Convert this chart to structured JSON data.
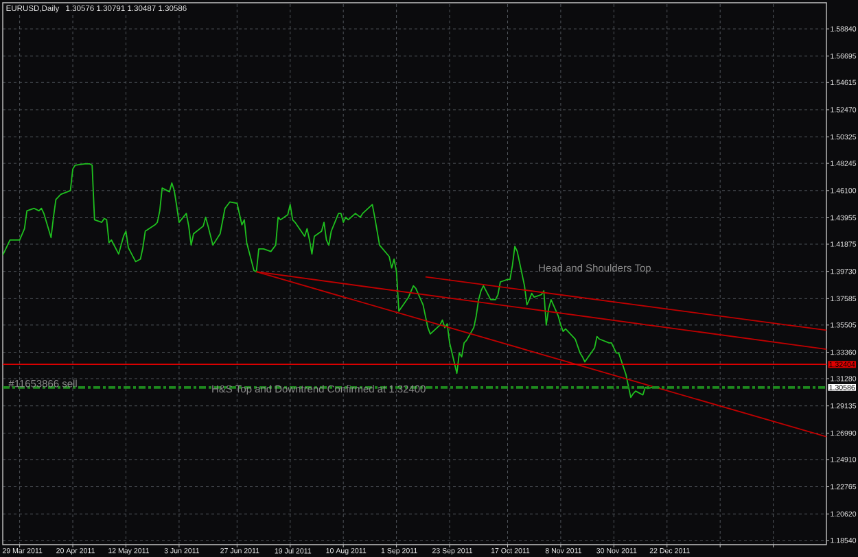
{
  "chart_data": {
    "type": "line",
    "title": "EURUSD,Daily",
    "subtitle": "1.30576 1.30791 1.30487 1.30586",
    "xlim": [
      "2011-03-22",
      "2012-02-26"
    ],
    "ylim": [
      1.182,
      1.609
    ],
    "xticks": [
      {
        "value": "2011-03-29",
        "label": "29 Mar 2011"
      },
      {
        "value": "2011-04-20",
        "label": "20 Apr 2011"
      },
      {
        "value": "2011-05-12",
        "label": "12 May 2011"
      },
      {
        "value": "2011-06-03",
        "label": "3 Jun 2011"
      },
      {
        "value": "2011-06-27",
        "label": "27 Jun 2011"
      },
      {
        "value": "2011-07-19",
        "label": "19 Jul 2011"
      },
      {
        "value": "2011-08-10",
        "label": "10 Aug 2011"
      },
      {
        "value": "2011-09-01",
        "label": "1 Sep 2011"
      },
      {
        "value": "2011-09-23",
        "label": "23 Sep 2011"
      },
      {
        "value": "2011-10-17",
        "label": "17 Oct 2011"
      },
      {
        "value": "2011-11-08",
        "label": "8 Nov 2011"
      },
      {
        "value": "2011-11-30",
        "label": "30 Nov 2011"
      },
      {
        "value": "2011-12-22",
        "label": "22 Dec 2011"
      },
      {
        "value": "2012-01-13",
        "label": null
      },
      {
        "value": "2012-02-04",
        "label": null
      }
    ],
    "yticks": [
      {
        "value": 1.5884,
        "label": "1.58840"
      },
      {
        "value": 1.56695,
        "label": "1.56695"
      },
      {
        "value": 1.54615,
        "label": "1.54615"
      },
      {
        "value": 1.5247,
        "label": "1.52470"
      },
      {
        "value": 1.50325,
        "label": "1.50325"
      },
      {
        "value": 1.48245,
        "label": "1.48245"
      },
      {
        "value": 1.461,
        "label": "1.46100"
      },
      {
        "value": 1.43955,
        "label": "1.43955"
      },
      {
        "value": 1.41875,
        "label": "1.41875"
      },
      {
        "value": 1.3973,
        "label": "1.39730"
      },
      {
        "value": 1.37585,
        "label": "1.37585"
      },
      {
        "value": 1.35505,
        "label": "1.35505"
      },
      {
        "value": 1.3336,
        "label": "1.33360"
      },
      {
        "value": 1.3128,
        "label": "1.31280"
      },
      {
        "value": 1.29135,
        "label": "1.29135"
      },
      {
        "value": 1.2699,
        "label": "1.26990"
      },
      {
        "value": 1.2491,
        "label": "1.24910"
      },
      {
        "value": 1.22765,
        "label": "1.22765"
      },
      {
        "value": 1.2062,
        "label": "1.20620"
      },
      {
        "value": 1.1854,
        "label": "1.18540"
      }
    ],
    "grid": true,
    "series": [
      {
        "color": "#1fc01f",
        "x": [
          "2011-03-22",
          "2011-03-25",
          "2011-03-29",
          "2011-03-31",
          "2011-04-01",
          "2011-04-04",
          "2011-04-06",
          "2011-04-07",
          "2011-04-08",
          "2011-04-11",
          "2011-04-12",
          "2011-04-13",
          "2011-04-15",
          "2011-04-19",
          "2011-04-20",
          "2011-04-21",
          "2011-04-25",
          "2011-04-27",
          "2011-04-28",
          "2011-04-29",
          "2011-05-02",
          "2011-05-03",
          "2011-05-04",
          "2011-05-05",
          "2011-05-06",
          "2011-05-09",
          "2011-05-10",
          "2011-05-11",
          "2011-05-12",
          "2011-05-13",
          "2011-05-16",
          "2011-05-18",
          "2011-05-19",
          "2011-05-20",
          "2011-05-24",
          "2011-05-25",
          "2011-05-26",
          "2011-05-27",
          "2011-05-30",
          "2011-05-31",
          "2011-06-01",
          "2011-06-02",
          "2011-06-03",
          "2011-06-06",
          "2011-06-07",
          "2011-06-08",
          "2011-06-09",
          "2011-06-13",
          "2011-06-14",
          "2011-06-15",
          "2011-06-17",
          "2011-06-20",
          "2011-06-22",
          "2011-06-24",
          "2011-06-27",
          "2011-06-29",
          "2011-06-30",
          "2011-07-01",
          "2011-07-04",
          "2011-07-05",
          "2011-07-06",
          "2011-07-08",
          "2011-07-11",
          "2011-07-13",
          "2011-07-14",
          "2011-07-15",
          "2011-07-18",
          "2011-07-19",
          "2011-07-20",
          "2011-07-21",
          "2011-07-25",
          "2011-07-26",
          "2011-07-27",
          "2011-07-28",
          "2011-07-29",
          "2011-08-01",
          "2011-08-02",
          "2011-08-03",
          "2011-08-04",
          "2011-08-05",
          "2011-08-08",
          "2011-08-09",
          "2011-08-10",
          "2011-08-11",
          "2011-08-12",
          "2011-08-15",
          "2011-08-17",
          "2011-08-18",
          "2011-08-22",
          "2011-08-23",
          "2011-08-25",
          "2011-08-29",
          "2011-08-30",
          "2011-08-31",
          "2011-09-01",
          "2011-09-02",
          "2011-09-06",
          "2011-09-08",
          "2011-09-09",
          "2011-09-12",
          "2011-09-14",
          "2011-09-15",
          "2011-09-19",
          "2011-09-20",
          "2011-09-21",
          "2011-09-22",
          "2011-09-23",
          "2011-09-26",
          "2011-09-27",
          "2011-09-28",
          "2011-09-29",
          "2011-09-30",
          "2011-10-03",
          "2011-10-04",
          "2011-10-05",
          "2011-10-06",
          "2011-10-07",
          "2011-10-10",
          "2011-10-12",
          "2011-10-13",
          "2011-10-14",
          "2011-10-17",
          "2011-10-18",
          "2011-10-19",
          "2011-10-20",
          "2011-10-21",
          "2011-10-24",
          "2011-10-25",
          "2011-10-26",
          "2011-10-27",
          "2011-10-28",
          "2011-10-31",
          "2011-11-01",
          "2011-11-02",
          "2011-11-03",
          "2011-11-04",
          "2011-11-07",
          "2011-11-08",
          "2011-11-09",
          "2011-11-10",
          "2011-11-11",
          "2011-11-14",
          "2011-11-16",
          "2011-11-17",
          "2011-11-18",
          "2011-11-22",
          "2011-11-23",
          "2011-11-24",
          "2011-11-28",
          "2011-11-29",
          "2011-12-01",
          "2011-12-02",
          "2011-12-05",
          "2011-12-07",
          "2011-12-08",
          "2011-12-09",
          "2011-12-12",
          "2011-12-13",
          "2011-12-14",
          "2011-12-16",
          "2011-12-19"
        ],
        "values": [
          1.41,
          1.422,
          1.422,
          1.431,
          1.445,
          1.447,
          1.445,
          1.447,
          1.443,
          1.424,
          1.44,
          1.454,
          1.458,
          1.461,
          1.478,
          1.481,
          1.482,
          1.482,
          1.481,
          1.438,
          1.436,
          1.439,
          1.438,
          1.42,
          1.422,
          1.411,
          1.418,
          1.425,
          1.429,
          1.416,
          1.405,
          1.407,
          1.416,
          1.429,
          1.434,
          1.436,
          1.445,
          1.463,
          1.46,
          1.467,
          1.461,
          1.449,
          1.436,
          1.443,
          1.433,
          1.418,
          1.427,
          1.433,
          1.44,
          1.433,
          1.418,
          1.427,
          1.447,
          1.452,
          1.451,
          1.434,
          1.438,
          1.42,
          1.398,
          1.397,
          1.415,
          1.415,
          1.413,
          1.418,
          1.44,
          1.438,
          1.442,
          1.45,
          1.438,
          1.436,
          1.425,
          1.431,
          1.422,
          1.411,
          1.425,
          1.429,
          1.436,
          1.422,
          1.418,
          1.429,
          1.443,
          1.443,
          1.436,
          1.44,
          1.438,
          1.443,
          1.44,
          1.443,
          1.45,
          1.44,
          1.418,
          1.409,
          1.4,
          1.407,
          1.397,
          1.366,
          1.377,
          1.386,
          1.384,
          1.371,
          1.353,
          1.348,
          1.355,
          1.359,
          1.353,
          1.356,
          1.341,
          1.317,
          1.333,
          1.33,
          1.341,
          1.343,
          1.353,
          1.362,
          1.375,
          1.382,
          1.386,
          1.375,
          1.375,
          1.379,
          1.389,
          1.391,
          1.391,
          1.402,
          1.417,
          1.413,
          1.386,
          1.371,
          1.375,
          1.38,
          1.377,
          1.379,
          1.382,
          1.355,
          1.368,
          1.375,
          1.362,
          1.355,
          1.35,
          1.352,
          1.35,
          1.344,
          1.333,
          1.33,
          1.326,
          1.337,
          1.346,
          1.344,
          1.341,
          1.341,
          1.333,
          1.333,
          1.316,
          1.298,
          1.301,
          1.303,
          1.3,
          1.306,
          1.305,
          1.306,
          1.306
        ]
      },
      {
        "color": "#c00000",
        "x": [
          "2011-07-05",
          "2012-02-26"
        ],
        "values": [
          1.397,
          1.336
        ]
      },
      {
        "color": "#c00000",
        "x": [
          "2011-07-05",
          "2012-02-26"
        ],
        "values": [
          1.397,
          1.267
        ]
      },
      {
        "color": "#c00000",
        "x": [
          "2011-09-13",
          "2012-02-26"
        ],
        "values": [
          1.393,
          1.351
        ]
      }
    ],
    "ref_lines": [
      {
        "axis": "y",
        "value": 1.32404,
        "label": "1.32404",
        "color": "#e00000"
      },
      {
        "axis": "y",
        "value": 1.30586,
        "label": "1.30586",
        "color": "#1e8a1e",
        "line_style": "dashed"
      }
    ],
    "annotations": [
      "Head and Shoulders Top",
      {
        "text": "H&S Top and Downtrend Confirmed at 1.32400",
        "x": "2011-06-16",
        "y": 1.304
      },
      {
        "text": "#11653866 sell",
        "x": "2011-03-24",
        "y": 1.309
      }
    ]
  }
}
